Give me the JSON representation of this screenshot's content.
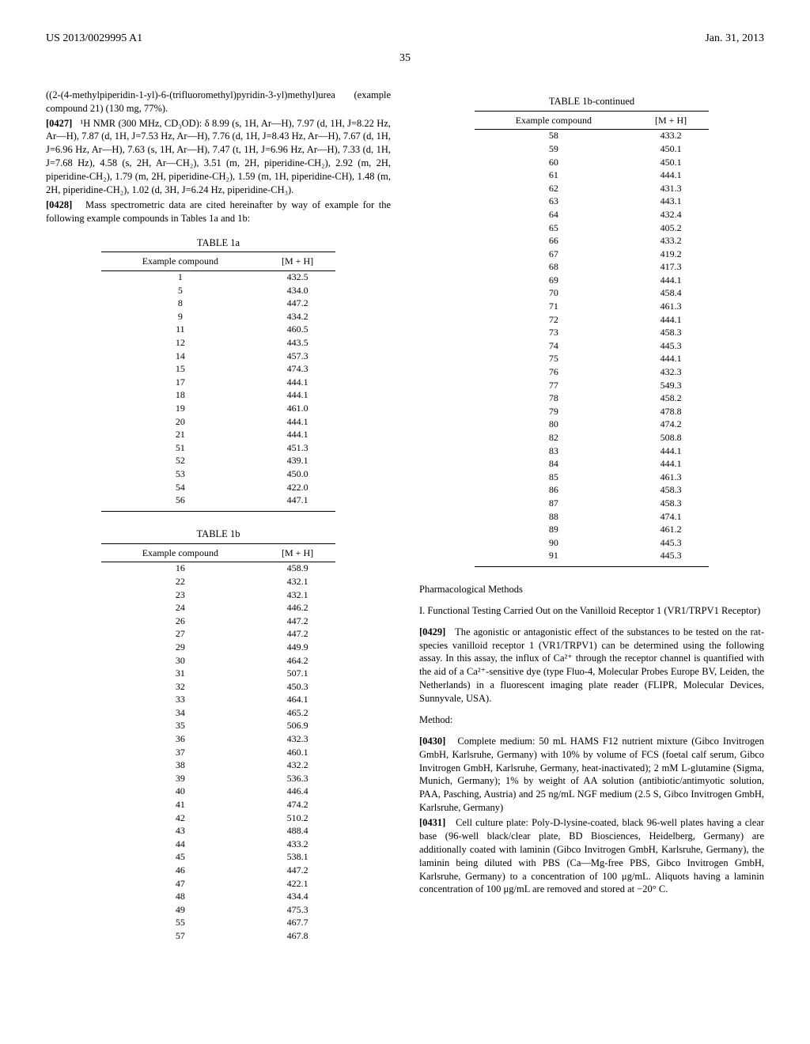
{
  "header": {
    "left": "US 2013/0029995 A1",
    "right": "Jan. 31, 2013"
  },
  "page_number": "35",
  "left_column": {
    "compound_title": "((2-(4-methylpiperidin-1-yl)-6-(trifluoromethyl)pyridin-3-yl)methyl)urea (example compound 21) (130 mg, 77%).",
    "para_0427_num": "[0427]",
    "para_0427": "¹H NMR (300 MHz, CD₃OD): δ 8.99 (s, 1H, Ar—H), 7.97 (d, 1H, J=8.22 Hz, Ar—H), 7.87 (d, 1H, J=7.53 Hz, Ar—H), 7.76 (d, 1H, J=8.43 Hz, Ar—H), 7.67 (d, 1H, J=6.96 Hz, Ar—H), 7.63 (s, 1H, Ar—H), 7.47 (t, 1H, J=6.96 Hz, Ar—H), 7.33 (d, 1H, J=7.68 Hz), 4.58 (s, 2H, Ar—CH₂), 3.51 (m, 2H, piperidine-CH₂), 2.92 (m, 2H, piperidine-CH₂), 1.79 (m, 2H, piperidine-CH₂), 1.59 (m, 1H, piperidine-CH), 1.48 (m, 2H, piperidine-CH₂), 1.02 (d, 3H, J=6.24 Hz, piperidine-CH₃).",
    "para_0428_num": "[0428]",
    "para_0428": "Mass spectrometric data are cited hereinafter by way of example for the following example compounds in Tables 1a and 1b:",
    "table1a": {
      "title": "TABLE 1a",
      "col1_header": "Example compound",
      "col2_header": "[M + H]",
      "rows": [
        [
          "1",
          "432.5"
        ],
        [
          "5",
          "434.0"
        ],
        [
          "8",
          "447.2"
        ],
        [
          "9",
          "434.2"
        ],
        [
          "11",
          "460.5"
        ],
        [
          "12",
          "443.5"
        ],
        [
          "14",
          "457.3"
        ],
        [
          "15",
          "474.3"
        ],
        [
          "17",
          "444.1"
        ],
        [
          "18",
          "444.1"
        ],
        [
          "19",
          "461.0"
        ],
        [
          "20",
          "444.1"
        ],
        [
          "21",
          "444.1"
        ],
        [
          "51",
          "451.3"
        ],
        [
          "52",
          "439.1"
        ],
        [
          "53",
          "450.0"
        ],
        [
          "54",
          "422.0"
        ],
        [
          "56",
          "447.1"
        ]
      ]
    },
    "table1b": {
      "title": "TABLE 1b",
      "col1_header": "Example compound",
      "col2_header": "[M + H]",
      "rows": [
        [
          "16",
          "458.9"
        ],
        [
          "22",
          "432.1"
        ],
        [
          "23",
          "432.1"
        ],
        [
          "24",
          "446.2"
        ],
        [
          "26",
          "447.2"
        ],
        [
          "27",
          "447.2"
        ],
        [
          "29",
          "449.9"
        ],
        [
          "30",
          "464.2"
        ],
        [
          "31",
          "507.1"
        ],
        [
          "32",
          "450.3"
        ],
        [
          "33",
          "464.1"
        ],
        [
          "34",
          "465.2"
        ],
        [
          "35",
          "506.9"
        ],
        [
          "36",
          "432.3"
        ],
        [
          "37",
          "460.1"
        ],
        [
          "38",
          "432.2"
        ],
        [
          "39",
          "536.3"
        ],
        [
          "40",
          "446.4"
        ],
        [
          "41",
          "474.2"
        ],
        [
          "42",
          "510.2"
        ],
        [
          "43",
          "488.4"
        ],
        [
          "44",
          "433.2"
        ],
        [
          "45",
          "538.1"
        ],
        [
          "46",
          "447.2"
        ],
        [
          "47",
          "422.1"
        ],
        [
          "48",
          "434.4"
        ],
        [
          "49",
          "475.3"
        ],
        [
          "55",
          "467.7"
        ],
        [
          "57",
          "467.8"
        ]
      ]
    }
  },
  "right_column": {
    "table1b_cont": {
      "title": "TABLE 1b-continued",
      "col1_header": "Example compound",
      "col2_header": "[M + H]",
      "rows": [
        [
          "58",
          "433.2"
        ],
        [
          "59",
          "450.1"
        ],
        [
          "60",
          "450.1"
        ],
        [
          "61",
          "444.1"
        ],
        [
          "62",
          "431.3"
        ],
        [
          "63",
          "443.1"
        ],
        [
          "64",
          "432.4"
        ],
        [
          "65",
          "405.2"
        ],
        [
          "66",
          "433.2"
        ],
        [
          "67",
          "419.2"
        ],
        [
          "68",
          "417.3"
        ],
        [
          "69",
          "444.1"
        ],
        [
          "70",
          "458.4"
        ],
        [
          "71",
          "461.3"
        ],
        [
          "72",
          "444.1"
        ],
        [
          "73",
          "458.3"
        ],
        [
          "74",
          "445.3"
        ],
        [
          "75",
          "444.1"
        ],
        [
          "76",
          "432.3"
        ],
        [
          "77",
          "549.3"
        ],
        [
          "78",
          "458.2"
        ],
        [
          "79",
          "478.8"
        ],
        [
          "80",
          "474.2"
        ],
        [
          "82",
          "508.8"
        ],
        [
          "83",
          "444.1"
        ],
        [
          "84",
          "444.1"
        ],
        [
          "85",
          "461.3"
        ],
        [
          "86",
          "458.3"
        ],
        [
          "87",
          "458.3"
        ],
        [
          "88",
          "474.1"
        ],
        [
          "89",
          "461.2"
        ],
        [
          "90",
          "445.3"
        ],
        [
          "91",
          "445.3"
        ]
      ]
    },
    "pharm_head": "Pharmacological Methods",
    "subhead_1": "I. Functional Testing Carried Out on the Vanilloid Receptor 1 (VR1/TRPV1 Receptor)",
    "para_0429_num": "[0429]",
    "para_0429": "The agonistic or antagonistic effect of the substances to be tested on the rat-species vanilloid receptor 1 (VR1/TRPV1) can be determined using the following assay. In this assay, the influx of Ca²⁺ through the receptor channel is quantified with the aid of a Ca²⁺-sensitive dye (type Fluo-4, Molecular Probes Europe BV, Leiden, the Netherlands) in a fluorescent imaging plate reader (FLIPR, Molecular Devices, Sunnyvale, USA).",
    "method_head": "Method:",
    "para_0430_num": "[0430]",
    "para_0430": "Complete medium: 50 mL HAMS F12 nutrient mixture (Gibco Invitrogen GmbH, Karlsruhe, Germany) with 10% by volume of FCS (foetal calf serum, Gibco Invitrogen GmbH, Karlsruhe, Germany, heat-inactivated); 2 mM L-glutamine (Sigma, Munich, Germany); 1% by weight of AA solution (antibiotic/antimyotic solution, PAA, Pasching, Austria) and 25 ng/mL NGF medium (2.5 S, Gibco Invitrogen GmbH, Karlsruhe, Germany)",
    "para_0431_num": "[0431]",
    "para_0431": "Cell culture plate: Poly-D-lysine-coated, black 96-well plates having a clear base (96-well black/clear plate, BD Biosciences, Heidelberg, Germany) are additionally coated with laminin (Gibco Invitrogen GmbH, Karlsruhe, Germany), the laminin being diluted with PBS (Ca—Mg-free PBS, Gibco Invitrogen GmbH, Karlsruhe, Germany) to a concentration of 100 μg/mL. Aliquots having a laminin concentration of 100 μg/mL are removed and stored at −20° C."
  }
}
